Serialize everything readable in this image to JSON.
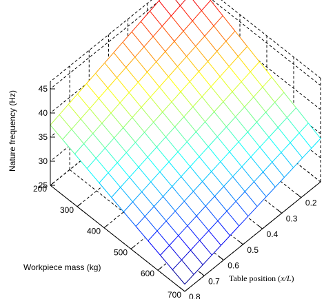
{
  "chart_data": {
    "type": "surface",
    "xlabel": "Workpiece mass (kg)",
    "ylabel_main": "Table position (",
    "ylabel_var": "x/L",
    "ylabel_close": ")",
    "zlabel": "Nature frequency (Hz)",
    "x_range": [
      200,
      700
    ],
    "y_range": [
      0.1,
      0.8
    ],
    "z_range": [
      25,
      45
    ],
    "x_ticks": [
      "200",
      "300",
      "400",
      "500",
      "600",
      "700"
    ],
    "y_ticks": [
      "0.2",
      "0.3",
      "0.4",
      "0.5",
      "0.6",
      "0.7",
      "0.8"
    ],
    "z_ticks": [
      "25",
      "30",
      "35",
      "40",
      "45"
    ],
    "grid": true,
    "colormap": "jet",
    "corner_values": {
      "mass_200_pos_0.1": 47,
      "mass_200_pos_0.8": 37.5,
      "mass_700_pos_0.1": 34,
      "mass_700_pos_0.8": 26.5
    }
  }
}
